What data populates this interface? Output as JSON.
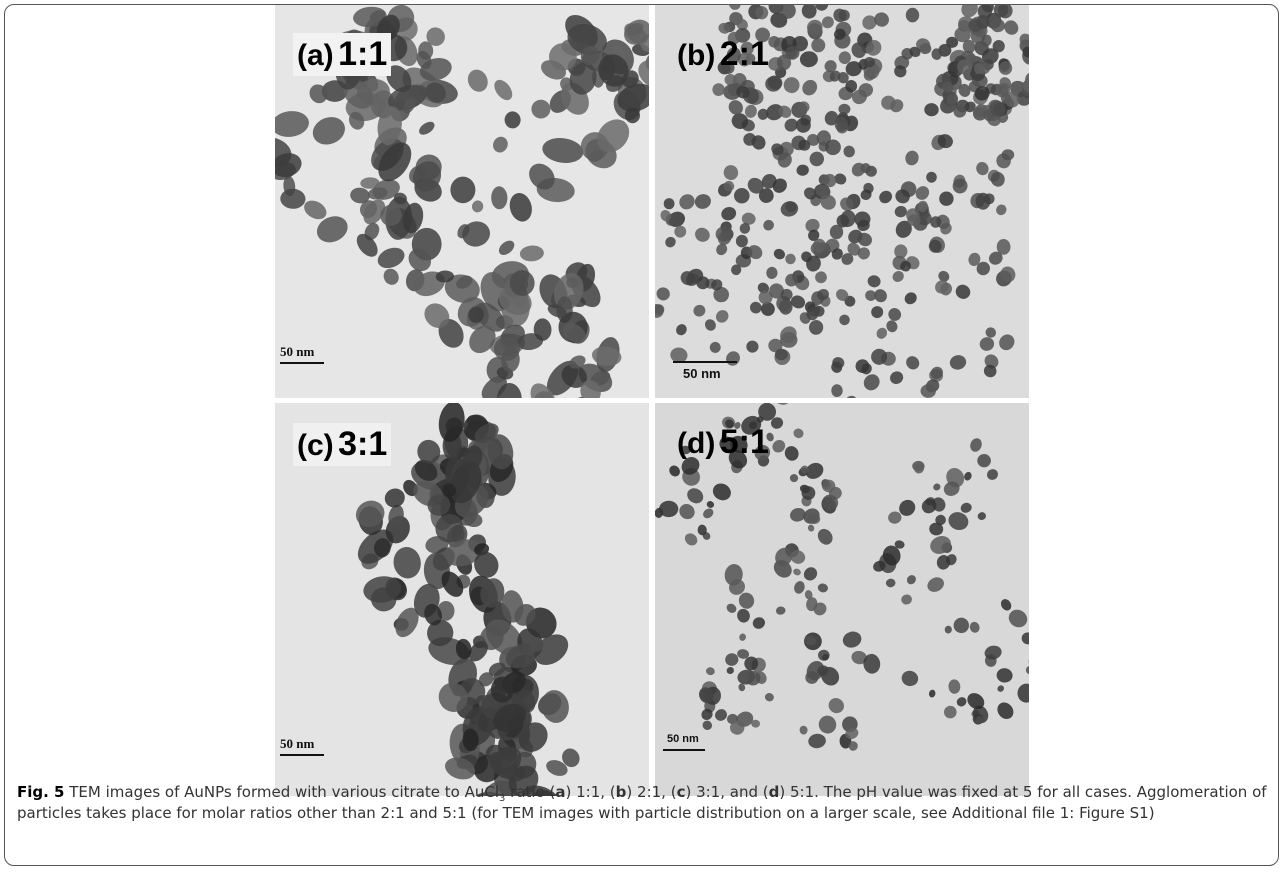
{
  "figure": {
    "panels": [
      {
        "letter": "(a)",
        "ratio": "1:1",
        "scale_bar": "50 nm"
      },
      {
        "letter": "(b)",
        "ratio": "2:1",
        "scale_bar": "50 nm"
      },
      {
        "letter": "(c)",
        "ratio": "3:1",
        "scale_bar": "50 nm"
      },
      {
        "letter": "(d)",
        "ratio": "5:1",
        "scale_bar": "50 nm"
      }
    ],
    "caption": {
      "parts": [
        "Fig. 5",
        " TEM images of AuNPs formed with various citrate to AuCl",
        "3",
        " ratio (",
        "a",
        ") 1:1, (",
        "b",
        ") 2:1, (",
        "c",
        ") 3:1, and (",
        "d",
        ") 5:1. The pH value was fixed at 5 for all cases. Agglomeration of particles takes place for molar ratios other than 2:1 and 5:1 (for TEM images with particle distribution on a larger scale, see Additional file 1: Figure S1)"
      ]
    }
  }
}
